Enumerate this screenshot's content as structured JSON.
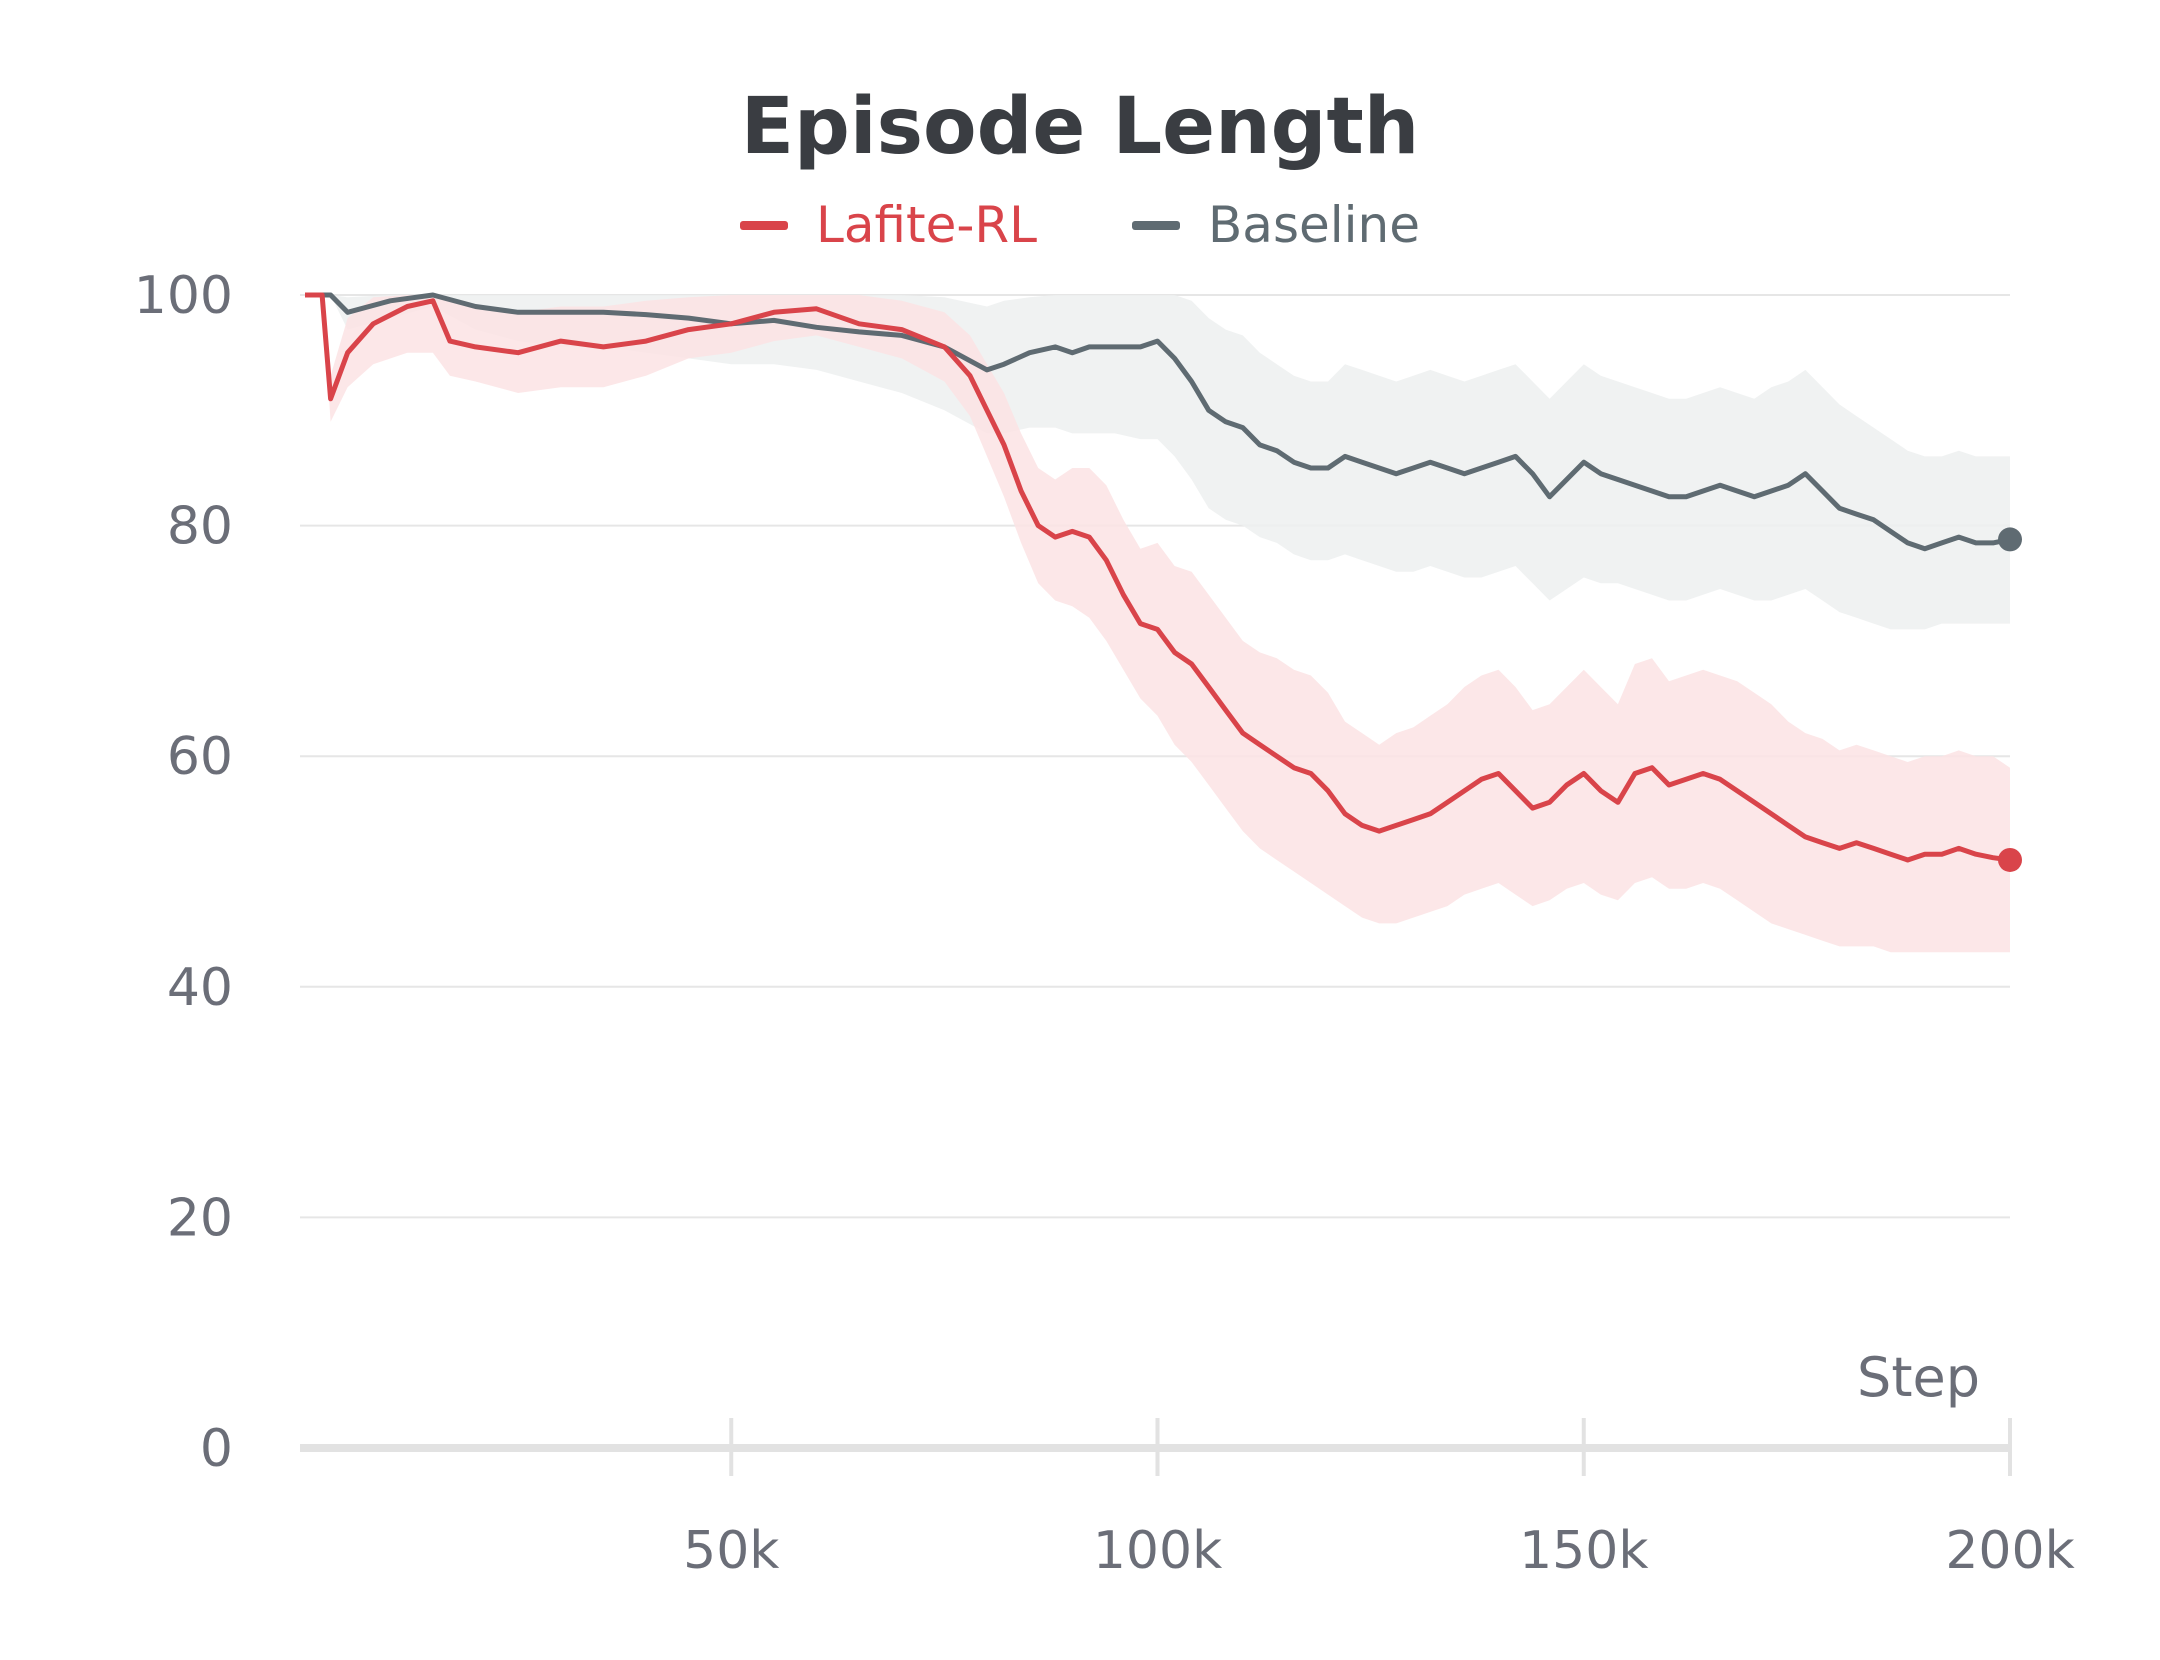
{
  "chart_data": {
    "type": "line",
    "title": "Episode Length",
    "xlabel": "Step",
    "ylabel": "",
    "xlim": [
      0,
      200000
    ],
    "ylim": [
      0,
      100
    ],
    "xticks": [
      50000,
      100000,
      150000,
      200000
    ],
    "xtick_labels": [
      "50k",
      "100k",
      "150k",
      "200k"
    ],
    "yticks": [
      0,
      20,
      40,
      60,
      80,
      100
    ],
    "ytick_labels": [
      "0",
      "20",
      "40",
      "60",
      "80",
      "100"
    ],
    "grid": "horizontal",
    "legend_position": "top-center",
    "series": [
      {
        "name": "Lafite-RL",
        "color": "#d9444a",
        "band_color": "#fbe3e4",
        "x": [
          0,
          2000,
          3000,
          5000,
          8000,
          12000,
          15000,
          17000,
          20000,
          25000,
          30000,
          35000,
          40000,
          45000,
          50000,
          55000,
          60000,
          65000,
          70000,
          75000,
          78000,
          80000,
          82000,
          84000,
          86000,
          88000,
          90000,
          92000,
          94000,
          96000,
          98000,
          100000,
          102000,
          104000,
          106000,
          108000,
          110000,
          112000,
          114000,
          116000,
          118000,
          120000,
          122000,
          124000,
          126000,
          128000,
          130000,
          132000,
          134000,
          136000,
          138000,
          140000,
          142000,
          144000,
          146000,
          148000,
          150000,
          152000,
          154000,
          156000,
          158000,
          160000,
          162000,
          164000,
          166000,
          168000,
          170000,
          172000,
          174000,
          176000,
          178000,
          180000,
          182000,
          184000,
          186000,
          188000,
          190000,
          192000,
          194000,
          196000,
          198000,
          200000
        ],
        "y": [
          100,
          100,
          91,
          95,
          97.5,
          99,
          99.5,
          96,
          95.5,
          95,
          96,
          95.5,
          96,
          97,
          97.5,
          98.5,
          98.8,
          97.5,
          97,
          95.5,
          93,
          90,
          87,
          83,
          80,
          79,
          79.5,
          79,
          77,
          74,
          71.5,
          71,
          69,
          68,
          66,
          64,
          62,
          61,
          60,
          59,
          58.5,
          57,
          55,
          54,
          53.5,
          54,
          54.5,
          55,
          56,
          57,
          58,
          58.5,
          57,
          55.5,
          56,
          57.5,
          58.5,
          57,
          56,
          58.5,
          59,
          57.5,
          58,
          58.5,
          58,
          57,
          56,
          55,
          54,
          53,
          52.5,
          52,
          52.5,
          52,
          51.5,
          51,
          51.5,
          51.5,
          52,
          51.5,
          51.2,
          51
        ],
        "lower": [
          100,
          100,
          89,
          92,
          94,
          95,
          95,
          93,
          92.5,
          91.5,
          92,
          92,
          93,
          94.5,
          95,
          96,
          96.5,
          95.5,
          94.5,
          92.5,
          89.5,
          86,
          82.5,
          78.5,
          75,
          73.5,
          73,
          72,
          70,
          67.5,
          65,
          63.5,
          61,
          59.5,
          57.5,
          55.5,
          53.5,
          52,
          51,
          50,
          49,
          48,
          47,
          46,
          45.5,
          45.5,
          46,
          46.5,
          47,
          48,
          48.5,
          49,
          48,
          47,
          47.5,
          48.5,
          49,
          48,
          47.5,
          49,
          49.5,
          48.5,
          48.5,
          49,
          48.5,
          47.5,
          46.5,
          45.5,
          45,
          44.5,
          44,
          43.5,
          43.5,
          43.5,
          43,
          43,
          43,
          43,
          43,
          43,
          43,
          43
        ],
        "upper": [
          100,
          100,
          93,
          98,
          99.8,
          100,
          100,
          99.5,
          99,
          98.5,
          99,
          99,
          99.5,
          99.8,
          100,
          100,
          100,
          100,
          99.5,
          98.5,
          96.5,
          94,
          91.5,
          88,
          85,
          84,
          85,
          85,
          83.5,
          80.5,
          78,
          78.5,
          76.5,
          76,
          74,
          72,
          70,
          69,
          68.5,
          67.5,
          67,
          65.5,
          63,
          62,
          61,
          62,
          62.5,
          63.5,
          64.5,
          66,
          67,
          67.5,
          66,
          64,
          64.5,
          66,
          67.5,
          66,
          64.5,
          68,
          68.5,
          66.5,
          67,
          67.5,
          67,
          66.5,
          65.5,
          64.5,
          63,
          62,
          61.5,
          60.5,
          61,
          60.5,
          60,
          59.5,
          60,
          60,
          60.5,
          60,
          60,
          59
        ]
      },
      {
        "name": "Baseline",
        "color": "#5f6b72",
        "band_color": "#edf0f0",
        "x": [
          0,
          3000,
          5000,
          10000,
          15000,
          20000,
          25000,
          30000,
          35000,
          40000,
          45000,
          50000,
          55000,
          60000,
          65000,
          70000,
          75000,
          80000,
          82000,
          85000,
          88000,
          90000,
          92000,
          95000,
          98000,
          100000,
          102000,
          104000,
          106000,
          108000,
          110000,
          112000,
          114000,
          116000,
          118000,
          120000,
          122000,
          124000,
          126000,
          128000,
          130000,
          132000,
          134000,
          136000,
          138000,
          140000,
          142000,
          144000,
          146000,
          148000,
          150000,
          152000,
          154000,
          156000,
          158000,
          160000,
          162000,
          164000,
          166000,
          168000,
          170000,
          172000,
          174000,
          176000,
          178000,
          180000,
          182000,
          184000,
          186000,
          188000,
          190000,
          192000,
          194000,
          196000,
          198000,
          200000
        ],
        "y": [
          100,
          100,
          98.5,
          99.5,
          100,
          99,
          98.5,
          98.5,
          98.5,
          98.3,
          98,
          97.5,
          97.8,
          97.2,
          96.8,
          96.5,
          95.5,
          93.5,
          94,
          95,
          95.5,
          95,
          95.5,
          95.5,
          95.5,
          96,
          94.5,
          92.5,
          90,
          89,
          88.5,
          87,
          86.5,
          85.5,
          85,
          85,
          86,
          85.5,
          85,
          84.5,
          85,
          85.5,
          85,
          84.5,
          85,
          85.5,
          86,
          84.5,
          82.5,
          84,
          85.5,
          84.5,
          84,
          83.5,
          83,
          82.5,
          82.5,
          83,
          83.5,
          83,
          82.5,
          83,
          83.5,
          84.5,
          83,
          81.5,
          81,
          80.5,
          79.5,
          78.5,
          78,
          78.5,
          79,
          78.5,
          78.5,
          78.8
        ],
        "lower": [
          100,
          100,
          97,
          98,
          99,
          97,
          96,
          95.5,
          95.5,
          95,
          94.5,
          94,
          94,
          93.5,
          92.5,
          91.5,
          90,
          88,
          88,
          88.5,
          88.5,
          88,
          88,
          88,
          87.5,
          87.5,
          86,
          84,
          81.5,
          80.5,
          80,
          79,
          78.5,
          77.5,
          77,
          77,
          77.5,
          77,
          76.5,
          76,
          76,
          76.5,
          76,
          75.5,
          75.5,
          76,
          76.5,
          75,
          73.5,
          74.5,
          75.5,
          75,
          75,
          74.5,
          74,
          73.5,
          73.5,
          74,
          74.5,
          74,
          73.5,
          73.5,
          74,
          74.5,
          73.5,
          72.5,
          72,
          71.5,
          71,
          71,
          71,
          71.5,
          71.5,
          71.5,
          71.5,
          71.5
        ],
        "upper": [
          100,
          100,
          99.8,
          100,
          100,
          100,
          100,
          100,
          100,
          100,
          100,
          100,
          100,
          100,
          100,
          100,
          99.8,
          99,
          99.5,
          99.8,
          100,
          100,
          100,
          100,
          100,
          100,
          100,
          99.5,
          98,
          97,
          96.5,
          95,
          94,
          93,
          92.5,
          92.5,
          94,
          93.5,
          93,
          92.5,
          93,
          93.5,
          93,
          92.5,
          93,
          93.5,
          94,
          92.5,
          91,
          92.5,
          94,
          93,
          92.5,
          92,
          91.5,
          91,
          91,
          91.5,
          92,
          91.5,
          91,
          92,
          92.5,
          93.5,
          92,
          90.5,
          89.5,
          88.5,
          87.5,
          86.5,
          86,
          86,
          86.5,
          86,
          86,
          86
        ]
      }
    ]
  }
}
